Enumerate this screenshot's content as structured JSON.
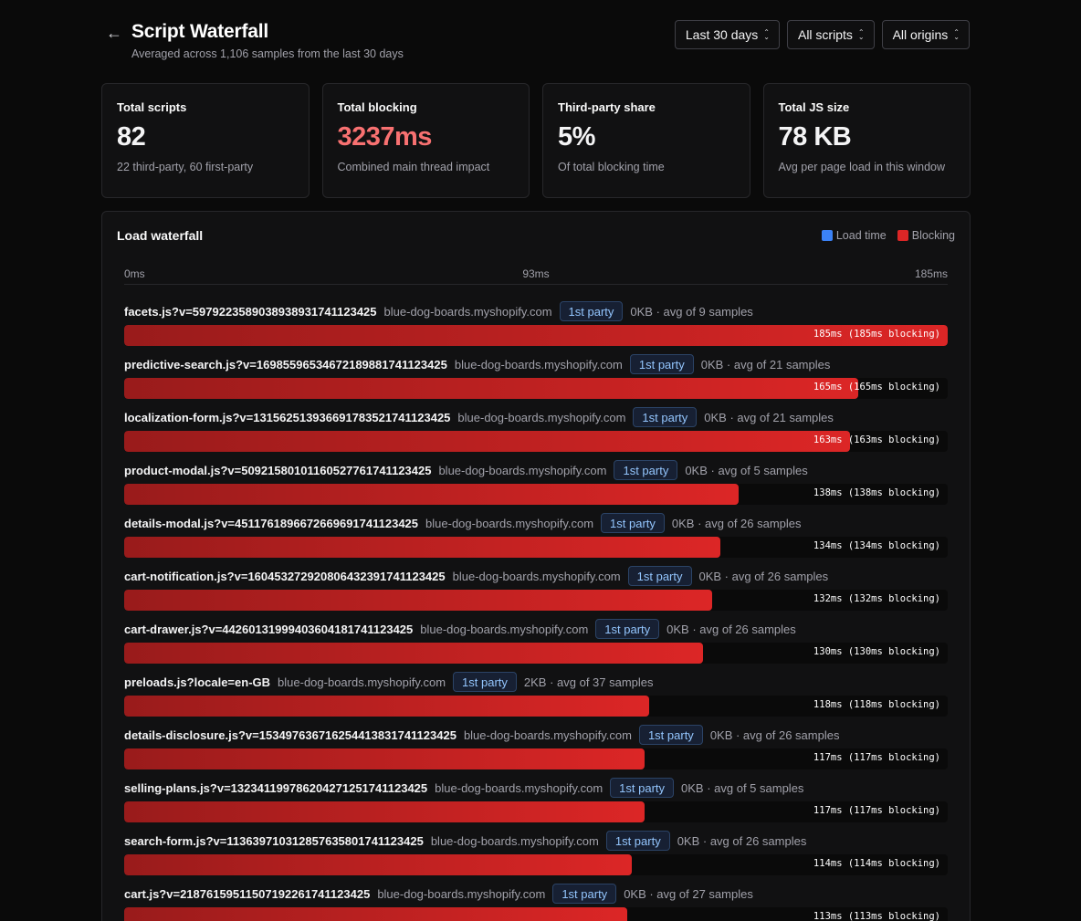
{
  "header": {
    "back_icon": "arrow-left-icon",
    "title": "Script Waterfall",
    "subtitle": "Averaged across 1,106 samples from the last 30 days",
    "filters": [
      {
        "label": "Last 30 days",
        "icon": "chevron-up-down-icon"
      },
      {
        "label": "All scripts",
        "icon": "chevron-up-down-icon"
      },
      {
        "label": "All origins",
        "icon": "chevron-up-down-icon"
      }
    ]
  },
  "stats": [
    {
      "label": "Total scripts",
      "value": "82",
      "sub": "22 third-party, 60 first-party"
    },
    {
      "label": "Total blocking",
      "value": "3237ms",
      "sub": "Combined main thread impact",
      "color": "#f87171"
    },
    {
      "label": "Third-party share",
      "value": "5%",
      "sub": "Of total blocking time"
    },
    {
      "label": "Total JS size",
      "value": "78 KB",
      "sub": "Avg per page load in this window"
    }
  ],
  "waterfall": {
    "title": "Load waterfall",
    "legend": [
      {
        "label": "Load time",
        "color": "#3b82f6"
      },
      {
        "label": "Blocking",
        "color": "#dc2626"
      }
    ],
    "axis": {
      "min": "0ms",
      "mid": "93ms",
      "max": "185ms"
    },
    "max_ms": 185,
    "rows": [
      {
        "name": "facets.js?v=5979223589038938931741123425",
        "origin": "blue-dog-boards.myshopify.com",
        "badge": "1st party",
        "meta": "0KB · avg of 9 samples",
        "ms": 185,
        "label": "185ms (185ms blocking)"
      },
      {
        "name": "predictive-search.js?v=16985596534672189881741123425",
        "origin": "blue-dog-boards.myshopify.com",
        "badge": "1st party",
        "meta": "0KB · avg of 21 samples",
        "ms": 165,
        "label": "165ms (165ms blocking)"
      },
      {
        "name": "localization-form.js?v=13156251393669178352174112342​5",
        "origin": "blue-dog-boards.myshopify.com",
        "badge": "1st party",
        "meta": "0KB · avg of 21 samples",
        "ms": 163,
        "label": "163ms (163ms blocking)"
      },
      {
        "name": "product-modal.js?v=5092158010116052776174112342​5",
        "origin": "blue-dog-boards.myshopify.com",
        "badge": "1st party",
        "meta": "0KB · avg of 5 samples",
        "ms": 138,
        "label": "138ms (138ms blocking)"
      },
      {
        "name": "details-modal.js?v=4511761896672669691741123425",
        "origin": "blue-dog-boards.myshopify.com",
        "badge": "1st party",
        "meta": "0KB · avg of 26 samples",
        "ms": 134,
        "label": "134ms (134ms blocking)"
      },
      {
        "name": "cart-notification.js?v=16045327292080643239174112342​5",
        "origin": "blue-dog-boards.myshopify.com",
        "badge": "1st party",
        "meta": "0KB · avg of 26 samples",
        "ms": 132,
        "label": "132ms (132ms blocking)"
      },
      {
        "name": "cart-drawer.js?v=4426013199940360418174112342​5",
        "origin": "blue-dog-boards.myshopify.com",
        "badge": "1st party",
        "meta": "0KB · avg of 26 samples",
        "ms": 130,
        "label": "130ms (130ms blocking)"
      },
      {
        "name": "preloads.js?locale=en-GB",
        "origin": "blue-dog-boards.myshopify.com",
        "badge": "1st party",
        "meta": "2KB · avg of 37 samples",
        "ms": 118,
        "label": "118ms (118ms blocking)"
      },
      {
        "name": "details-disclosure.js?v=15349763671625441383174112342​5",
        "origin": "blue-dog-boards.myshopify.com",
        "badge": "1st party",
        "meta": "0KB · avg of 26 samples",
        "ms": 117,
        "label": "117ms (117ms blocking)"
      },
      {
        "name": "selling-plans.js?v=13234119978620427125174112342​5",
        "origin": "blue-dog-boards.myshopify.com",
        "badge": "1st party",
        "meta": "0KB · avg of 5 samples",
        "ms": 117,
        "label": "117ms (117ms blocking)"
      },
      {
        "name": "search-form.js?v=11363971031285763580174112342​5",
        "origin": "blue-dog-boards.myshopify.com",
        "badge": "1st party",
        "meta": "0KB · avg of 26 samples",
        "ms": 114,
        "label": "114ms (114ms blocking)"
      },
      {
        "name": "cart.js?v=2187615951150719226174112342​5",
        "origin": "blue-dog-boards.myshopify.com",
        "badge": "1st party",
        "meta": "0KB · avg of 27 samples",
        "ms": 113,
        "label": "113ms (113ms blocking)"
      }
    ]
  }
}
